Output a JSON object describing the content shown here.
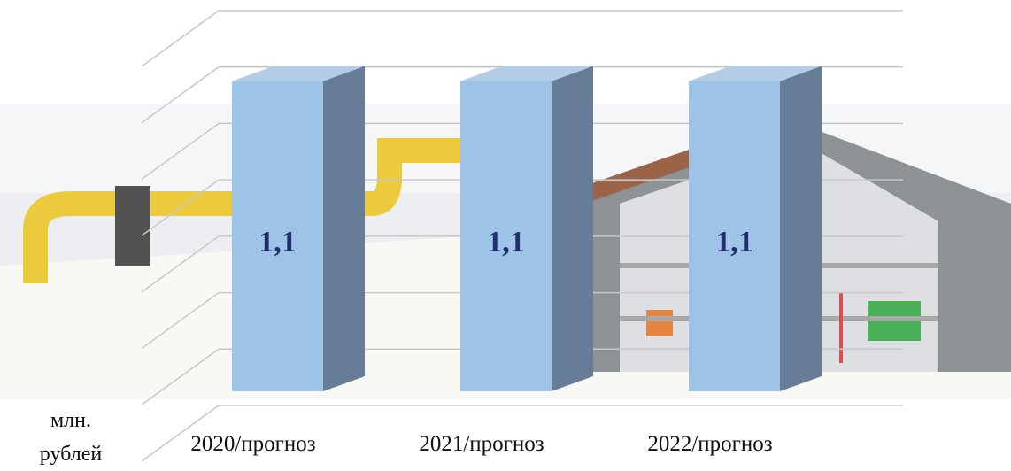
{
  "chart_data": {
    "type": "bar3d",
    "y_label": "млн. рублей",
    "categories": [
      "2020/прогноз",
      "2021/прогноз",
      "2022/прогноз"
    ],
    "values": [
      1.1,
      1.1,
      1.1
    ],
    "value_labels": [
      "1,1",
      "1,1",
      "1,1"
    ],
    "color": "#9dc3e6",
    "ylim": [
      0,
      1.4
    ],
    "yticks": [
      0,
      0.2,
      0.4,
      0.6,
      0.8,
      1.0,
      1.2,
      1.4
    ],
    "grid": true
  }
}
